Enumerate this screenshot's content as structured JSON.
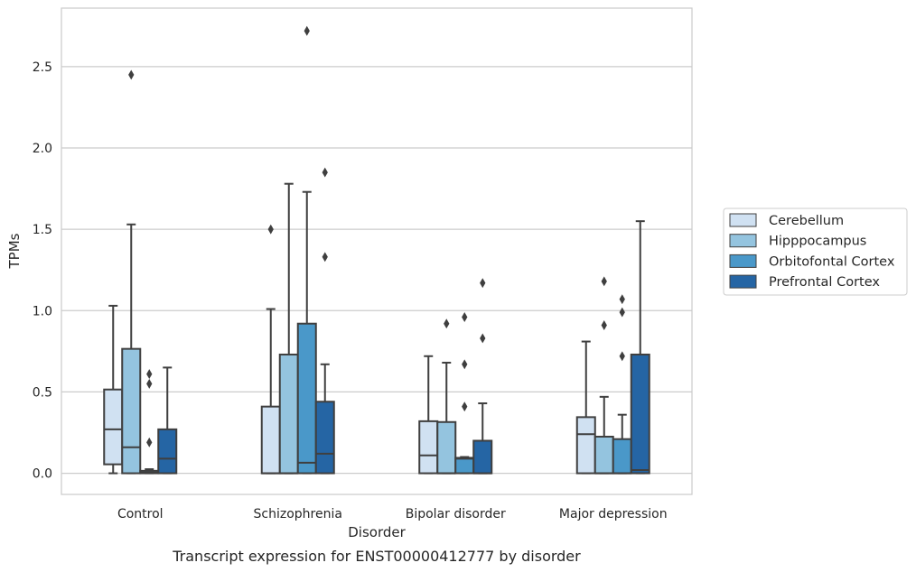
{
  "caption": "Transcript expression for ENST00000412777 by disorder",
  "chart_data": {
    "type": "box",
    "xlabel": "Disorder",
    "ylabel": "TPMs",
    "ylim": [
      -0.13,
      2.86
    ],
    "yticks": [
      0.0,
      0.5,
      1.0,
      1.5,
      2.0,
      2.5
    ],
    "ytick_labels": [
      "0.0",
      "0.5",
      "1.0",
      "1.5",
      "2.0",
      "2.5"
    ],
    "grid": true,
    "legend_position": "center-right outside",
    "categories": [
      "Control",
      "Schizophrenia",
      "Bipolar disorder",
      "Major depression"
    ],
    "series": [
      {
        "name": "Cerebellum",
        "color": "#d0e1f2",
        "boxes": [
          {
            "whislo": 0.0,
            "q1": 0.055,
            "med": 0.27,
            "q3": 0.515,
            "whishi": 1.03,
            "fliers": []
          },
          {
            "whislo": 0.0,
            "q1": 0.0,
            "med": 0.0,
            "q3": 0.41,
            "whishi": 1.01,
            "fliers": [
              1.5
            ]
          },
          {
            "whislo": 0.0,
            "q1": 0.0,
            "med": 0.11,
            "q3": 0.32,
            "whishi": 0.72,
            "fliers": []
          },
          {
            "whislo": 0.0,
            "q1": 0.0,
            "med": 0.24,
            "q3": 0.345,
            "whishi": 0.81,
            "fliers": []
          }
        ]
      },
      {
        "name": "Hipppocampus",
        "color": "#94c4df",
        "boxes": [
          {
            "whislo": 0.0,
            "q1": 0.0,
            "med": 0.16,
            "q3": 0.765,
            "whishi": 1.53,
            "fliers": [
              2.45
            ]
          },
          {
            "whislo": 0.0,
            "q1": 0.0,
            "med": 0.0,
            "q3": 0.73,
            "whishi": 1.78,
            "fliers": []
          },
          {
            "whislo": 0.0,
            "q1": 0.0,
            "med": 0.0,
            "q3": 0.315,
            "whishi": 0.68,
            "fliers": [
              0.92
            ]
          },
          {
            "whislo": 0.0,
            "q1": 0.0,
            "med": 0.0,
            "q3": 0.225,
            "whishi": 0.47,
            "fliers": [
              0.91,
              1.18
            ]
          }
        ]
      },
      {
        "name": "Orbitofontal Cortex",
        "color": "#4a98c9",
        "boxes": [
          {
            "whislo": 0.0,
            "q1": 0.0,
            "med": 0.005,
            "q3": 0.015,
            "whishi": 0.025,
            "fliers": [
              0.19,
              0.55,
              0.61
            ]
          },
          {
            "whislo": 0.0,
            "q1": 0.0,
            "med": 0.065,
            "q3": 0.92,
            "whishi": 1.73,
            "fliers": [
              2.72
            ]
          },
          {
            "whislo": 0.0,
            "q1": 0.0,
            "med": 0.09,
            "q3": 0.095,
            "whishi": 0.1,
            "fliers": [
              0.41,
              0.67,
              0.96
            ]
          },
          {
            "whislo": 0.0,
            "q1": 0.0,
            "med": 0.0,
            "q3": 0.21,
            "whishi": 0.36,
            "fliers": [
              0.72,
              0.99,
              1.07
            ]
          }
        ]
      },
      {
        "name": "Prefrontal Cortex",
        "color": "#2565a4",
        "boxes": [
          {
            "whislo": 0.0,
            "q1": 0.0,
            "med": 0.09,
            "q3": 0.27,
            "whishi": 0.65,
            "fliers": []
          },
          {
            "whislo": 0.0,
            "q1": 0.0,
            "med": 0.12,
            "q3": 0.44,
            "whishi": 0.67,
            "fliers": [
              1.33,
              1.85
            ]
          },
          {
            "whislo": 0.0,
            "q1": 0.0,
            "med": 0.0,
            "q3": 0.2,
            "whishi": 0.43,
            "fliers": [
              0.83,
              1.17
            ]
          },
          {
            "whislo": 0.0,
            "q1": 0.0,
            "med": 0.02,
            "q3": 0.73,
            "whishi": 1.55,
            "fliers": []
          }
        ]
      }
    ]
  }
}
